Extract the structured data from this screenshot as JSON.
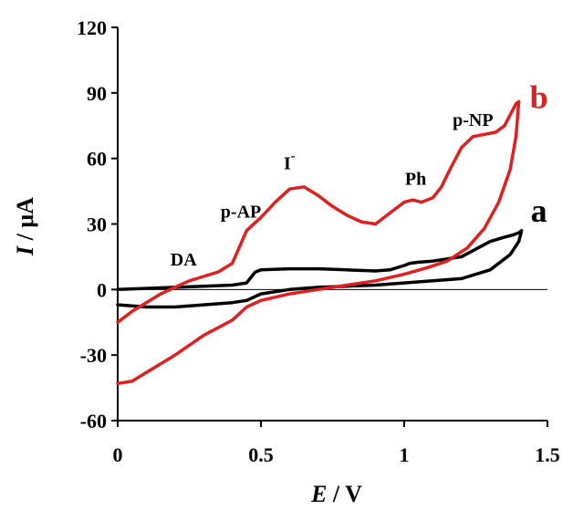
{
  "chart_data": {
    "type": "line",
    "xlabel": {
      "var": "E",
      "unit": " / V"
    },
    "ylabel": {
      "var": "I",
      "unit": " / μA"
    },
    "xlim": [
      0,
      1.5
    ],
    "ylim": [
      -60,
      120
    ],
    "x_ticks": [
      0,
      0.5,
      1,
      1.5
    ],
    "x_tick_labels": [
      "0",
      "0.5",
      "1",
      "1.5"
    ],
    "y_ticks": [
      -60,
      -30,
      0,
      30,
      60,
      90,
      120
    ],
    "y_tick_labels": [
      "-60",
      "-30",
      "0",
      "30",
      "60",
      "90",
      "120"
    ],
    "grid": false,
    "annotations": [
      {
        "text": "DA",
        "x": 0.23,
        "y": 11
      },
      {
        "text": "p-AP",
        "x": 0.43,
        "y": 33
      },
      {
        "text": "I",
        "sup": "-",
        "x": 0.6,
        "y": 55
      },
      {
        "text": "Ph",
        "x": 1.04,
        "y": 48
      },
      {
        "text": "p-NP",
        "x": 1.24,
        "y": 75
      }
    ],
    "series": [
      {
        "name": "a",
        "color": "#000000",
        "label_at": {
          "x": 1.47,
          "y": 31
        },
        "x": [
          0,
          0.1,
          0.2,
          0.3,
          0.4,
          0.45,
          0.48,
          0.5,
          0.6,
          0.7,
          0.8,
          0.9,
          0.95,
          1.0,
          1.02,
          1.05,
          1.1,
          1.2,
          1.3,
          1.35,
          1.38,
          1.4,
          1.41,
          1.4,
          1.37,
          1.3,
          1.2,
          1.1,
          1.0,
          0.9,
          0.8,
          0.7,
          0.6,
          0.5,
          0.45,
          0.4,
          0.3,
          0.2,
          0.1,
          0.05,
          0
        ],
        "y": [
          0,
          0.5,
          1,
          1.5,
          2,
          3,
          8,
          9,
          9.5,
          9.5,
          9,
          8.5,
          9,
          11,
          12,
          12.5,
          13,
          15,
          22,
          24,
          25,
          26,
          27,
          22,
          16,
          9,
          5,
          4,
          3,
          2,
          1.5,
          1,
          0,
          -2,
          -5,
          -6,
          -7,
          -8,
          -8,
          -7.5,
          -7
        ]
      },
      {
        "name": "b",
        "color": "#e02020",
        "label_at": {
          "x": 1.47,
          "y": 83
        },
        "x": [
          0,
          0.05,
          0.1,
          0.15,
          0.2,
          0.25,
          0.3,
          0.35,
          0.4,
          0.45,
          0.5,
          0.55,
          0.6,
          0.65,
          0.7,
          0.75,
          0.8,
          0.85,
          0.9,
          0.95,
          1.0,
          1.03,
          1.06,
          1.1,
          1.13,
          1.16,
          1.2,
          1.24,
          1.28,
          1.32,
          1.35,
          1.37,
          1.39,
          1.4,
          1.39,
          1.37,
          1.33,
          1.28,
          1.22,
          1.15,
          1.08,
          1.0,
          0.9,
          0.8,
          0.7,
          0.6,
          0.5,
          0.45,
          0.4,
          0.3,
          0.2,
          0.1,
          0.05,
          0
        ],
        "y": [
          -15,
          -10,
          -6,
          -2,
          1,
          4,
          6,
          8,
          12,
          27,
          33,
          40,
          46,
          47,
          43,
          38,
          34,
          31,
          30,
          35,
          40,
          41,
          40,
          42,
          47,
          55,
          65,
          70,
          71,
          72,
          75,
          80,
          85,
          86,
          70,
          55,
          40,
          28,
          19,
          13,
          10,
          7,
          4,
          2,
          0,
          -2,
          -5,
          -8,
          -14,
          -21,
          -30,
          -38,
          -42,
          -43
        ]
      }
    ]
  }
}
